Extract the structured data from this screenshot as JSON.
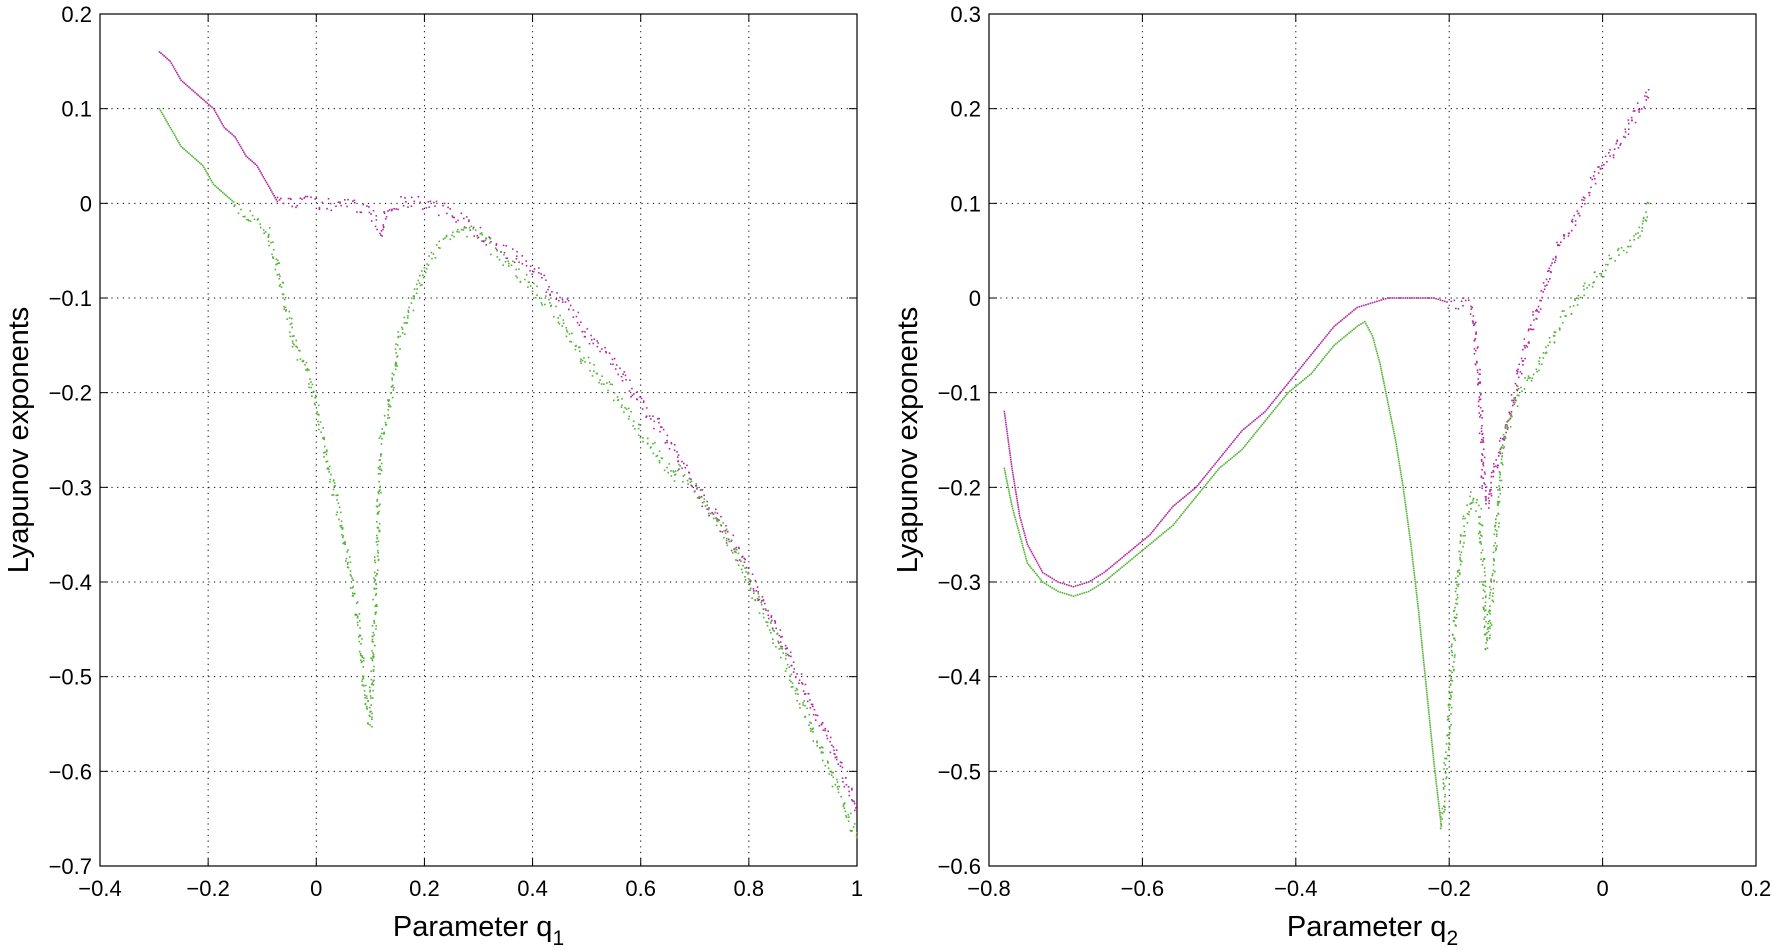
{
  "chart_data": [
    {
      "type": "scatter",
      "xlabel_main": "Parameter q",
      "xlabel_sub": "1",
      "ylabel": "Lyapunov exponents",
      "xlim": [
        -0.4,
        1.0
      ],
      "ylim": [
        -0.7,
        0.2
      ],
      "xticks": [
        -0.4,
        -0.2,
        0,
        0.2,
        0.4,
        0.6,
        0.8,
        1
      ],
      "yticks": [
        -0.7,
        -0.6,
        -0.5,
        -0.4,
        -0.3,
        -0.2,
        -0.1,
        0,
        0.1,
        0.2
      ],
      "xtick_labels": [
        "−0.4",
        "−0.2",
        "0",
        "0.2",
        "0.4",
        "0.6",
        "0.8",
        "1"
      ],
      "ytick_labels": [
        "−0.7",
        "−0.6",
        "−0.5",
        "−0.4",
        "−0.3",
        "−0.2",
        "−0.1",
        "0",
        "0.1",
        "0.2"
      ],
      "grid": true,
      "series": [
        {
          "color": "#b1289e",
          "x": [
            -0.29,
            -0.27,
            -0.25,
            -0.23,
            -0.21,
            -0.19,
            -0.17,
            -0.15,
            -0.13,
            -0.11,
            -0.09,
            -0.08,
            -0.07,
            -0.05,
            -0.03,
            0,
            0.03,
            0.06,
            0.09,
            0.11,
            0.12,
            0.13,
            0.15,
            0.2,
            0.25,
            0.3,
            0.35,
            0.4,
            0.45,
            0.48,
            0.5,
            0.55,
            0.6,
            0.65,
            0.7,
            0.75,
            0.8,
            0.85,
            0.9,
            0.95,
            1.0
          ],
          "y": [
            0.16,
            0.15,
            0.13,
            0.12,
            0.11,
            0.1,
            0.08,
            0.07,
            0.05,
            0.04,
            0.02,
            0.01,
            0.0,
            0.0,
            0.0,
            0.0,
            -0.002,
            -0.003,
            -0.005,
            -0.02,
            -0.03,
            -0.01,
            0.0,
            0.0,
            -0.01,
            -0.03,
            -0.05,
            -0.07,
            -0.1,
            -0.12,
            -0.14,
            -0.17,
            -0.21,
            -0.25,
            -0.3,
            -0.34,
            -0.39,
            -0.45,
            -0.51,
            -0.57,
            -0.64
          ]
        },
        {
          "color": "#52b234",
          "x": [
            -0.29,
            -0.27,
            -0.25,
            -0.23,
            -0.21,
            -0.19,
            -0.17,
            -0.15,
            -0.13,
            -0.11,
            -0.09,
            -0.08,
            -0.07,
            -0.06,
            -0.05,
            -0.04,
            -0.02,
            0,
            0.02,
            0.04,
            0.06,
            0.08,
            0.09,
            0.1,
            0.11,
            0.12,
            0.13,
            0.14,
            0.15,
            0.18,
            0.21,
            0.24,
            0.27,
            0.3,
            0.35,
            0.4,
            0.45,
            0.48,
            0.49,
            0.5,
            0.55,
            0.6,
            0.65,
            0.66,
            0.67,
            0.7,
            0.75,
            0.8,
            0.85,
            0.9,
            0.95,
            1.0
          ],
          "y": [
            0.1,
            0.08,
            0.06,
            0.05,
            0.04,
            0.02,
            0.01,
            0.0,
            -0.01,
            -0.02,
            -0.03,
            -0.05,
            -0.07,
            -0.1,
            -0.12,
            -0.15,
            -0.17,
            -0.21,
            -0.27,
            -0.32,
            -0.38,
            -0.45,
            -0.52,
            -0.55,
            -0.4,
            -0.25,
            -0.23,
            -0.2,
            -0.15,
            -0.1,
            -0.06,
            -0.04,
            -0.025,
            -0.035,
            -0.06,
            -0.09,
            -0.12,
            -0.15,
            -0.16,
            -0.17,
            -0.2,
            -0.24,
            -0.28,
            -0.29,
            -0.28,
            -0.3,
            -0.34,
            -0.4,
            -0.46,
            -0.53,
            -0.6,
            -0.67
          ]
        }
      ]
    },
    {
      "type": "scatter",
      "xlabel_main": "Parameter q",
      "xlabel_sub": "2",
      "ylabel": "Lyapunov exponents",
      "xlim": [
        -0.8,
        0.2
      ],
      "ylim": [
        -0.6,
        0.3
      ],
      "xticks": [
        -0.8,
        -0.6,
        -0.4,
        -0.2,
        0,
        0.2
      ],
      "yticks": [
        -0.6,
        -0.5,
        -0.4,
        -0.3,
        -0.2,
        -0.1,
        0,
        0.1,
        0.2,
        0.3
      ],
      "xtick_labels": [
        "−0.8",
        "−0.6",
        "−0.4",
        "−0.2",
        "0",
        "0.2"
      ],
      "ytick_labels": [
        "−0.6",
        "−0.5",
        "−0.4",
        "−0.3",
        "−0.2",
        "−0.1",
        "0",
        "0.1",
        "0.2",
        "0.3"
      ],
      "grid": true,
      "series": [
        {
          "color": "#b1289e",
          "x": [
            -0.78,
            -0.77,
            -0.76,
            -0.75,
            -0.73,
            -0.71,
            -0.69,
            -0.67,
            -0.65,
            -0.62,
            -0.59,
            -0.56,
            -0.53,
            -0.5,
            -0.47,
            -0.44,
            -0.41,
            -0.38,
            -0.35,
            -0.32,
            -0.3,
            -0.28,
            -0.26,
            -0.24,
            -0.22,
            -0.2,
            -0.18,
            -0.17,
            -0.16,
            -0.155,
            -0.15,
            -0.14,
            -0.12,
            -0.1,
            -0.08,
            -0.06,
            -0.04,
            -0.02,
            0,
            0.02,
            0.04,
            0.06
          ],
          "y": [
            -0.12,
            -0.18,
            -0.23,
            -0.26,
            -0.29,
            -0.3,
            -0.305,
            -0.3,
            -0.29,
            -0.27,
            -0.25,
            -0.22,
            -0.2,
            -0.17,
            -0.14,
            -0.12,
            -0.09,
            -0.06,
            -0.03,
            -0.01,
            -0.005,
            0.0,
            0.0,
            0.0,
            0.0,
            -0.005,
            -0.005,
            -0.01,
            -0.1,
            -0.2,
            -0.22,
            -0.18,
            -0.12,
            -0.05,
            0.0,
            0.05,
            0.08,
            0.11,
            0.14,
            0.16,
            0.19,
            0.22
          ]
        },
        {
          "color": "#52b234",
          "x": [
            -0.78,
            -0.77,
            -0.76,
            -0.75,
            -0.73,
            -0.71,
            -0.69,
            -0.67,
            -0.65,
            -0.62,
            -0.59,
            -0.56,
            -0.53,
            -0.5,
            -0.47,
            -0.44,
            -0.41,
            -0.38,
            -0.35,
            -0.32,
            -0.31,
            -0.3,
            -0.29,
            -0.28,
            -0.27,
            -0.26,
            -0.25,
            -0.24,
            -0.23,
            -0.22,
            -0.21,
            -0.2,
            -0.19,
            -0.18,
            -0.17,
            -0.16,
            -0.15,
            -0.13,
            -0.11,
            -0.09,
            -0.07,
            -0.05,
            -0.03,
            -0.01,
            0.01,
            0.03,
            0.05,
            0.06
          ],
          "y": [
            -0.18,
            -0.22,
            -0.25,
            -0.28,
            -0.3,
            -0.31,
            -0.315,
            -0.31,
            -0.3,
            -0.28,
            -0.26,
            -0.24,
            -0.21,
            -0.18,
            -0.16,
            -0.13,
            -0.1,
            -0.08,
            -0.05,
            -0.03,
            -0.025,
            -0.04,
            -0.07,
            -0.11,
            -0.15,
            -0.2,
            -0.26,
            -0.33,
            -0.41,
            -0.49,
            -0.56,
            -0.45,
            -0.3,
            -0.24,
            -0.21,
            -0.23,
            -0.37,
            -0.15,
            -0.1,
            -0.08,
            -0.05,
            -0.02,
            0.0,
            0.02,
            0.04,
            0.05,
            0.07,
            0.1
          ]
        }
      ]
    }
  ]
}
